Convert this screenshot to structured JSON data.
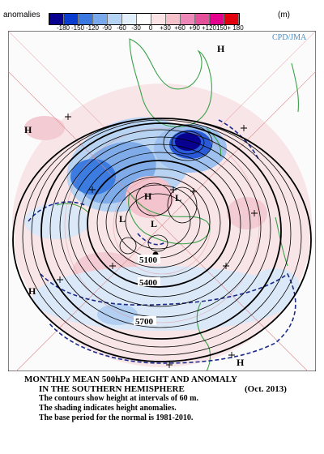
{
  "legend": {
    "title": "anomalies",
    "unit": "(m)",
    "colors": [
      "#08008f",
      "#0a3dcf",
      "#3b79e0",
      "#77a9ec",
      "#b5d3f5",
      "#e1eefb",
      "#ffffff",
      "#fbe2e4",
      "#f5c2cc",
      "#ee88b8",
      "#e4509a",
      "#e4008c",
      "#e4000e"
    ],
    "ticks": [
      "-180",
      "-150",
      "-120",
      "-90",
      "-60",
      "-30",
      "0",
      "+30",
      "+60",
      "+90",
      "+120",
      "150+",
      "180"
    ]
  },
  "map": {
    "credit": "CPD/JMA",
    "labels": [
      {
        "text": "H",
        "kind": "high"
      },
      {
        "text": "H",
        "kind": "high"
      },
      {
        "text": "H",
        "kind": "high"
      },
      {
        "text": "H",
        "kind": "high"
      },
      {
        "text": "H",
        "kind": "high"
      },
      {
        "text": "L",
        "kind": "low"
      },
      {
        "text": "L",
        "kind": "low"
      },
      {
        "text": "L",
        "kind": "low"
      }
    ],
    "contour_values": [
      "5100",
      "5400",
      "5700"
    ]
  },
  "caption": {
    "title": "MONTHLY MEAN 500hPa HEIGHT AND ANOMALY",
    "subtitle": "IN THE SOUTHERN HEMISPHERE",
    "date": "(Oct. 2013)",
    "line1": "The contours show height at intervals of 60 m.",
    "line2": "The shading indicates height anomalies.",
    "line3": "The base period for the normal is 1981-2010."
  }
}
